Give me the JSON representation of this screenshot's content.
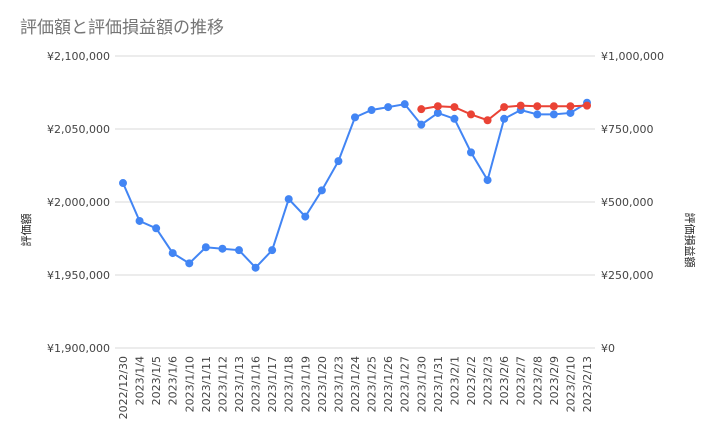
{
  "chart_data": {
    "type": "line",
    "title": "評価額と評価損益額の推移",
    "ylabel_left": "評価額",
    "ylabel_right": "評価損益額",
    "categories": [
      "2022/12/30",
      "2023/1/4",
      "2023/1/5",
      "2023/1/6",
      "2023/1/10",
      "2023/1/11",
      "2023/1/12",
      "2023/1/13",
      "2023/1/16",
      "2023/1/17",
      "2023/1/18",
      "2023/1/19",
      "2023/1/20",
      "2023/1/23",
      "2023/1/24",
      "2023/1/25",
      "2023/1/26",
      "2023/1/27",
      "2023/1/30",
      "2023/1/31",
      "2023/2/1",
      "2023/2/2",
      "2023/2/3",
      "2023/2/6",
      "2023/2/7",
      "2023/2/8",
      "2023/2/9",
      "2023/2/10",
      "2023/2/13"
    ],
    "left_axis": {
      "ylim": [
        1900000,
        2100000
      ],
      "ticks": [
        1900000,
        1950000,
        2000000,
        2050000,
        2100000
      ],
      "tick_labels": [
        "¥1,900,000",
        "¥1,950,000",
        "¥2,000,000",
        "¥2,050,000",
        "¥2,100,000"
      ]
    },
    "right_axis": {
      "ylim": [
        0,
        1000000
      ],
      "ticks": [
        0,
        250000,
        500000,
        750000,
        1000000
      ],
      "tick_labels": [
        "¥0",
        "¥250,000",
        "¥500,000",
        "¥750,000",
        "¥1,000,000"
      ]
    },
    "grid": true,
    "legend": "none",
    "series": [
      {
        "axis": "left",
        "color": "#4285f4",
        "values": [
          2013000,
          1987000,
          1982000,
          1965000,
          1958000,
          1969000,
          1968000,
          1967000,
          1955000,
          1967000,
          2002000,
          1990000,
          2008000,
          2028000,
          2058000,
          2063000,
          2065000,
          2067000,
          2053000,
          2061000,
          2057000,
          2034000,
          2015000,
          2057000,
          2063000,
          2060000,
          2060000,
          2061000,
          2068000
        ]
      },
      {
        "axis": "right",
        "color": "#ea4335",
        "values": [
          null,
          null,
          null,
          null,
          null,
          null,
          null,
          null,
          null,
          null,
          null,
          null,
          null,
          null,
          null,
          null,
          null,
          null,
          818000,
          828000,
          825000,
          800000,
          780000,
          825000,
          830000,
          828000,
          828000,
          828000,
          830000
        ]
      }
    ]
  }
}
